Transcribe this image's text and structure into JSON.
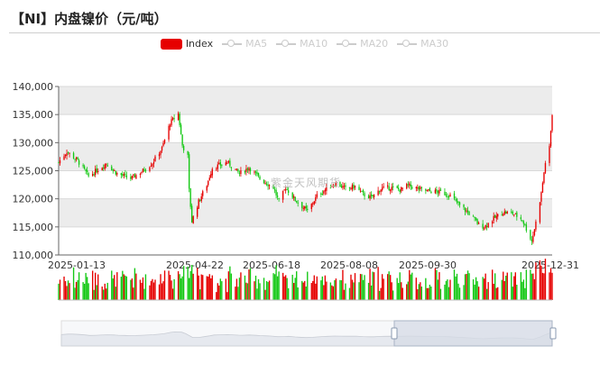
{
  "title": "【NI】内盘镍价（元/吨）",
  "watermark": "紫金天风期货",
  "legend": [
    {
      "label": "Index",
      "active": true
    },
    {
      "label": "MA5",
      "active": false
    },
    {
      "label": "MA10",
      "active": false
    },
    {
      "label": "MA20",
      "active": false
    },
    {
      "label": "MA30",
      "active": false
    }
  ],
  "colors": {
    "up": "#e60000",
    "down": "#14c814",
    "grid_band": "#ececec",
    "axis": "#666666",
    "slider_fill": "#d5dbe6"
  },
  "chart_data": {
    "type": "candlestick",
    "y_axis": {
      "min": 110000,
      "max": 140000,
      "ticks": [
        "110,000",
        "115,000",
        "120,000",
        "125,000",
        "130,000",
        "135,000",
        "140,000"
      ]
    },
    "x_tick_labels": [
      "2025-01-13",
      "2025-04-22",
      "2025-06-18",
      "2025-08-08",
      "2025-09-30",
      "2025-12-31"
    ],
    "close_path": [
      [
        "2025-01-02",
        126500
      ],
      [
        "2025-01-08",
        128400
      ],
      [
        "2025-01-16",
        126800
      ],
      [
        "2025-01-24",
        124000
      ],
      [
        "2025-02-06",
        126300
      ],
      [
        "2025-02-14",
        124500
      ],
      [
        "2025-02-24",
        123600
      ],
      [
        "2025-03-05",
        125000
      ],
      [
        "2025-03-12",
        126400
      ],
      [
        "2025-03-19",
        129000
      ],
      [
        "2025-03-25",
        133500
      ],
      [
        "2025-03-31",
        135200
      ],
      [
        "2025-04-03",
        129500
      ],
      [
        "2025-04-07",
        127500
      ],
      [
        "2025-04-08",
        121500
      ],
      [
        "2025-04-10",
        116000
      ],
      [
        "2025-04-15",
        119500
      ],
      [
        "2025-04-21",
        122500
      ],
      [
        "2025-04-25",
        125500
      ],
      [
        "2025-05-06",
        126500
      ],
      [
        "2025-05-15",
        124500
      ],
      [
        "2025-05-22",
        125600
      ],
      [
        "2025-05-30",
        123600
      ],
      [
        "2025-06-09",
        122000
      ],
      [
        "2025-06-13",
        119500
      ],
      [
        "2025-06-18",
        122000
      ],
      [
        "2025-06-25",
        119800
      ],
      [
        "2025-07-04",
        117800
      ],
      [
        "2025-07-11",
        120500
      ],
      [
        "2025-07-18",
        121800
      ],
      [
        "2025-07-25",
        122800
      ],
      [
        "2025-08-01",
        121800
      ],
      [
        "2025-08-08",
        122200
      ],
      [
        "2025-08-14",
        120800
      ],
      [
        "2025-08-20",
        120200
      ],
      [
        "2025-08-27",
        121800
      ],
      [
        "2025-09-03",
        122000
      ],
      [
        "2025-09-10",
        121600
      ],
      [
        "2025-09-16",
        122400
      ],
      [
        "2025-09-23",
        121800
      ],
      [
        "2025-09-30",
        121400
      ],
      [
        "2025-10-10",
        121200
      ],
      [
        "2025-10-17",
        120600
      ],
      [
        "2025-10-24",
        118800
      ],
      [
        "2025-10-31",
        117400
      ],
      [
        "2025-11-07",
        115400
      ],
      [
        "2025-11-11",
        115000
      ],
      [
        "2025-11-18",
        116500
      ],
      [
        "2025-11-25",
        117600
      ],
      [
        "2025-12-02",
        117400
      ],
      [
        "2025-12-09",
        116300
      ],
      [
        "2025-12-16",
        112500
      ],
      [
        "2025-12-19",
        115800
      ],
      [
        "2025-12-23",
        121000
      ],
      [
        "2025-12-26",
        126500
      ],
      [
        "2025-12-29",
        129000
      ],
      [
        "2025-12-31",
        135000
      ]
    ],
    "volume": "relative bar heights, unlabeled"
  }
}
